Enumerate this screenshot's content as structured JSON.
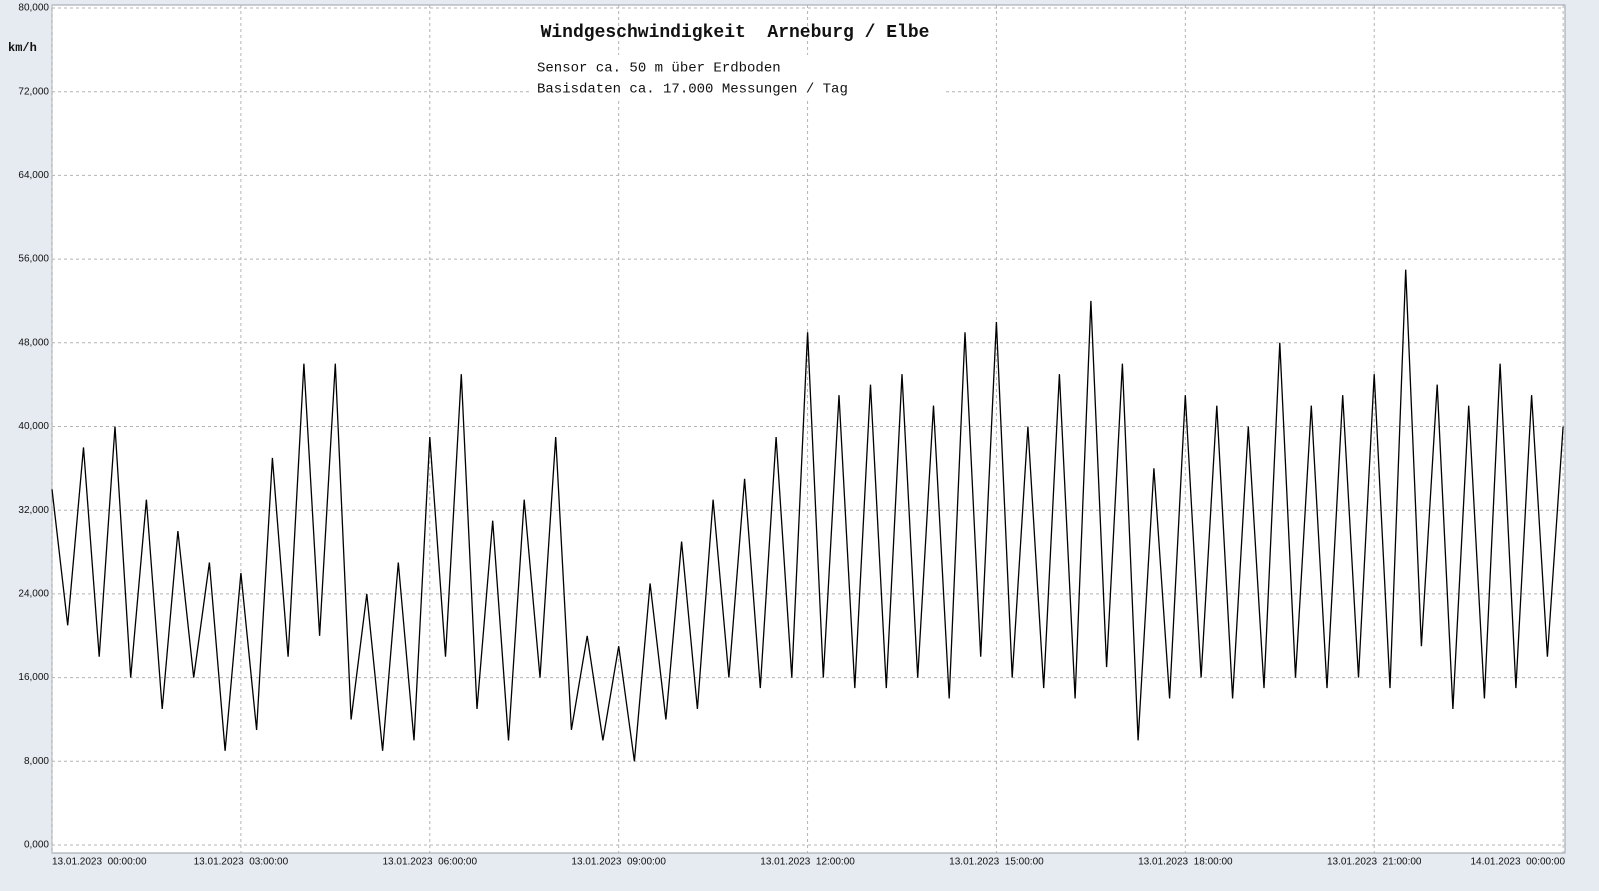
{
  "chart_data": {
    "type": "line",
    "title": "Windgeschwindigkeit  Arneburg / Elbe",
    "subtitle": [
      "Sensor ca. 50 m über Erdboden",
      "Basisdaten ca. 17.000 Messungen / Tag"
    ],
    "y_label": "km/h",
    "color": "#000000",
    "grid": true,
    "x": [
      0,
      0.25,
      0.5,
      0.75,
      1,
      1.25,
      1.5,
      1.75,
      2,
      2.25,
      2.5,
      2.75,
      3,
      3.25,
      3.5,
      3.75,
      4,
      4.25,
      4.5,
      4.75,
      5,
      5.25,
      5.5,
      5.75,
      6,
      6.25,
      6.5,
      6.75,
      7,
      7.25,
      7.5,
      7.75,
      8,
      8.25,
      8.5,
      8.75,
      9,
      9.25,
      9.5,
      9.75,
      10,
      10.25,
      10.5,
      10.75,
      11,
      11.25,
      11.5,
      11.75,
      12,
      12.25,
      12.5,
      12.75,
      13,
      13.25,
      13.5,
      13.75,
      14,
      14.25,
      14.5,
      14.75,
      15,
      15.25,
      15.5,
      15.75,
      16,
      16.25,
      16.5,
      16.75,
      17,
      17.25,
      17.5,
      17.75,
      18,
      18.25,
      18.5,
      18.75,
      19,
      19.25,
      19.5,
      19.75,
      20,
      20.25,
      20.5,
      20.75,
      21,
      21.25,
      21.5,
      21.75,
      22,
      22.25,
      22.5,
      22.75,
      23,
      23.25,
      23.5,
      23.75,
      24
    ],
    "values": [
      34,
      21,
      38,
      18,
      40,
      16,
      33,
      13,
      30,
      16,
      27,
      9,
      26,
      11,
      37,
      18,
      46,
      20,
      46,
      12,
      24,
      9,
      27,
      10,
      39,
      18,
      45,
      13,
      31,
      10,
      33,
      16,
      39,
      11,
      20,
      10,
      19,
      8,
      25,
      12,
      29,
      13,
      33,
      16,
      35,
      15,
      39,
      16,
      49,
      16,
      43,
      15,
      44,
      15,
      45,
      16,
      42,
      14,
      49,
      18,
      50,
      16,
      40,
      15,
      45,
      14,
      52,
      17,
      46,
      10,
      36,
      14,
      43,
      16,
      42,
      14,
      40,
      15,
      48,
      16,
      42,
      15,
      43,
      16,
      45,
      15,
      55,
      19,
      44,
      13,
      42,
      14,
      46,
      15,
      43,
      18,
      40
    ],
    "xlim": [
      0,
      24.03
    ],
    "xticks": [
      {
        "value": 0,
        "label": "13.01.2023  00:00:00"
      },
      {
        "value": 3,
        "label": "13.01.2023  03:00:00"
      },
      {
        "value": 6,
        "label": "13.01.2023  06:00:00"
      },
      {
        "value": 9,
        "label": "13.01.2023  09:00:00"
      },
      {
        "value": 12,
        "label": "13.01.2023  12:00:00"
      },
      {
        "value": 15,
        "label": "13.01.2023  15:00:00"
      },
      {
        "value": 18,
        "label": "13.01.2023  18:00:00"
      },
      {
        "value": 21,
        "label": "13.01.2023  21:00:00"
      },
      {
        "value": 24,
        "label": "14.01.2023  00:00:00"
      }
    ],
    "ylim": [
      0,
      80
    ],
    "yticks": [
      {
        "value": 0,
        "label": "0,000"
      },
      {
        "value": 8,
        "label": "8,000"
      },
      {
        "value": 16,
        "label": "16,000"
      },
      {
        "value": 24,
        "label": "24,000"
      },
      {
        "value": 32,
        "label": "32,000"
      },
      {
        "value": 40,
        "label": "40,000"
      },
      {
        "value": 48,
        "label": "48,000"
      },
      {
        "value": 56,
        "label": "56,000"
      },
      {
        "value": 64,
        "label": "64,000"
      },
      {
        "value": 72,
        "label": "72,000"
      },
      {
        "value": 80,
        "label": "80,000"
      }
    ]
  }
}
